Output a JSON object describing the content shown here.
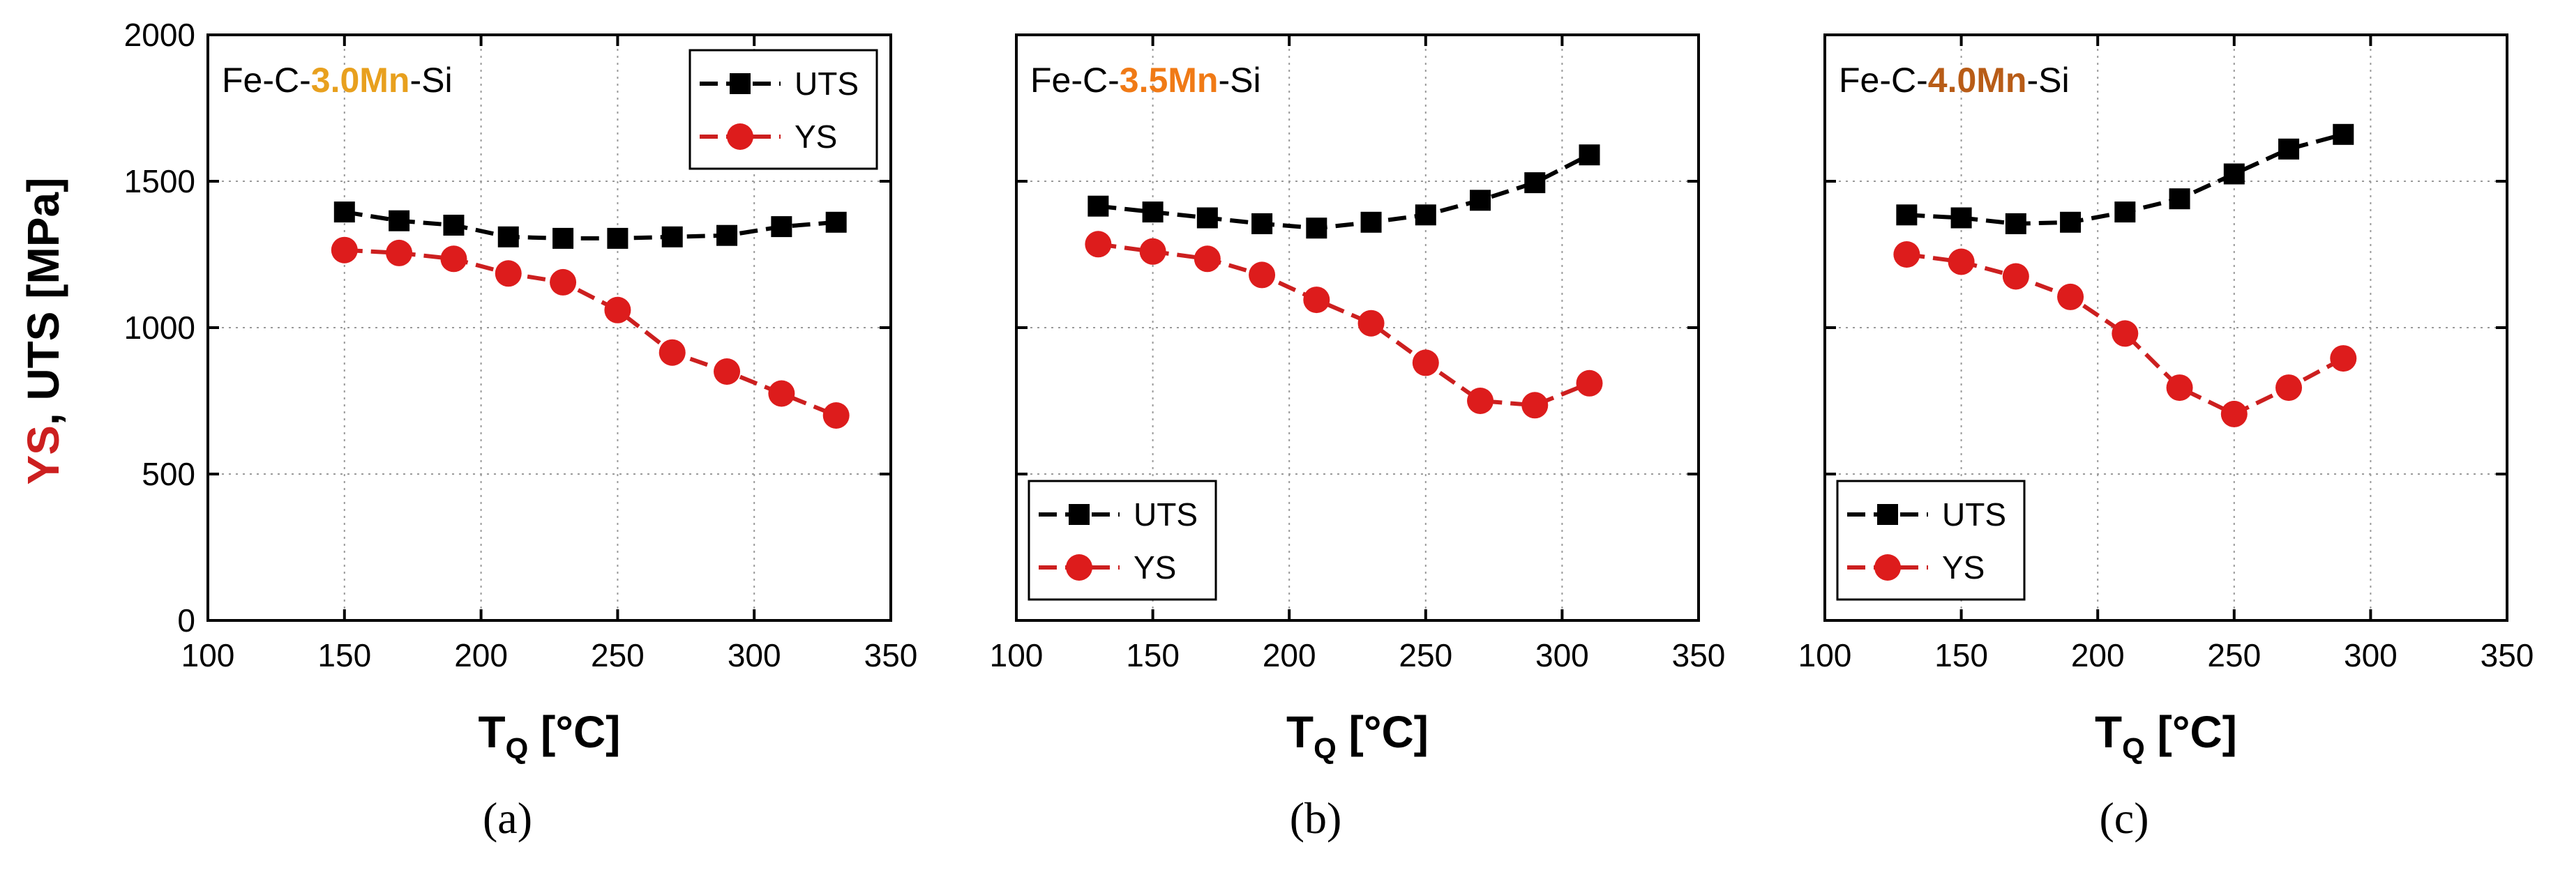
{
  "colors": {
    "uts": "#000000",
    "ys": "#cc1f1f",
    "ys_fill": "#dd1c1c",
    "grid": "#9a9a9a"
  },
  "ylabel_parts": {
    "ys": "YS",
    "rest": ", UTS [MPa]"
  },
  "xlabel_parts": {
    "main": "T",
    "sub": "Q",
    "rest": " [°C]"
  },
  "chart_data": [
    {
      "type": "line",
      "panel_label": "(a)",
      "alloy": {
        "prefix": "Fe-C-",
        "highlight": "3.0Mn",
        "suffix": "-Si",
        "highlight_color": "#e8a01e"
      },
      "legend_position": "top-right",
      "xlabel": "T_Q [°C]",
      "ylabel": "YS, UTS [MPa]",
      "xlim": [
        100,
        350
      ],
      "ylim": [
        0,
        2000
      ],
      "xticks": [
        100,
        150,
        200,
        250,
        300,
        350
      ],
      "yticks": [
        0,
        500,
        1000,
        1500,
        2000
      ],
      "grid": true,
      "series": [
        {
          "name": "UTS",
          "marker": "square",
          "x": [
            150,
            170,
            190,
            210,
            230,
            250,
            270,
            290,
            310,
            330
          ],
          "y": [
            1395,
            1365,
            1350,
            1310,
            1305,
            1305,
            1310,
            1315,
            1345,
            1360
          ]
        },
        {
          "name": "YS",
          "marker": "circle",
          "x": [
            150,
            170,
            190,
            210,
            230,
            250,
            270,
            290,
            310,
            330
          ],
          "y": [
            1265,
            1255,
            1235,
            1185,
            1155,
            1060,
            915,
            850,
            775,
            700
          ]
        }
      ]
    },
    {
      "type": "line",
      "panel_label": "(b)",
      "alloy": {
        "prefix": "Fe-C-",
        "highlight": "3.5Mn",
        "suffix": "-Si",
        "highlight_color": "#f07a16"
      },
      "legend_position": "bottom-left",
      "xlabel": "T_Q [°C]",
      "ylabel": "",
      "xlim": [
        100,
        350
      ],
      "ylim": [
        0,
        2000
      ],
      "xticks": [
        100,
        150,
        200,
        250,
        300,
        350
      ],
      "yticks": [
        0,
        500,
        1000,
        1500,
        2000
      ],
      "grid": true,
      "series": [
        {
          "name": "UTS",
          "marker": "square",
          "x": [
            130,
            150,
            170,
            190,
            210,
            230,
            250,
            270,
            290,
            310
          ],
          "y": [
            1415,
            1395,
            1375,
            1355,
            1340,
            1360,
            1385,
            1435,
            1495,
            1590
          ]
        },
        {
          "name": "YS",
          "marker": "circle",
          "x": [
            130,
            150,
            170,
            190,
            210,
            230,
            250,
            270,
            290,
            310
          ],
          "y": [
            1285,
            1260,
            1235,
            1180,
            1095,
            1015,
            880,
            750,
            735,
            810
          ]
        }
      ]
    },
    {
      "type": "line",
      "panel_label": "(c)",
      "alloy": {
        "prefix": "Fe-C-",
        "highlight": "4.0Mn",
        "suffix": "-Si",
        "highlight_color": "#b85c17"
      },
      "legend_position": "bottom-left",
      "xlabel": "T_Q [°C]",
      "ylabel": "",
      "xlim": [
        100,
        350
      ],
      "ylim": [
        0,
        2000
      ],
      "xticks": [
        100,
        150,
        200,
        250,
        300,
        350
      ],
      "yticks": [
        0,
        500,
        1000,
        1500,
        2000
      ],
      "grid": true,
      "series": [
        {
          "name": "UTS",
          "marker": "square",
          "x": [
            130,
            150,
            170,
            190,
            210,
            230,
            250,
            270,
            290
          ],
          "y": [
            1385,
            1375,
            1355,
            1360,
            1395,
            1440,
            1525,
            1610,
            1660
          ]
        },
        {
          "name": "YS",
          "marker": "circle",
          "x": [
            130,
            150,
            170,
            190,
            210,
            230,
            250,
            270,
            290
          ],
          "y": [
            1250,
            1225,
            1175,
            1105,
            980,
            795,
            705,
            795,
            895
          ]
        }
      ]
    }
  ]
}
